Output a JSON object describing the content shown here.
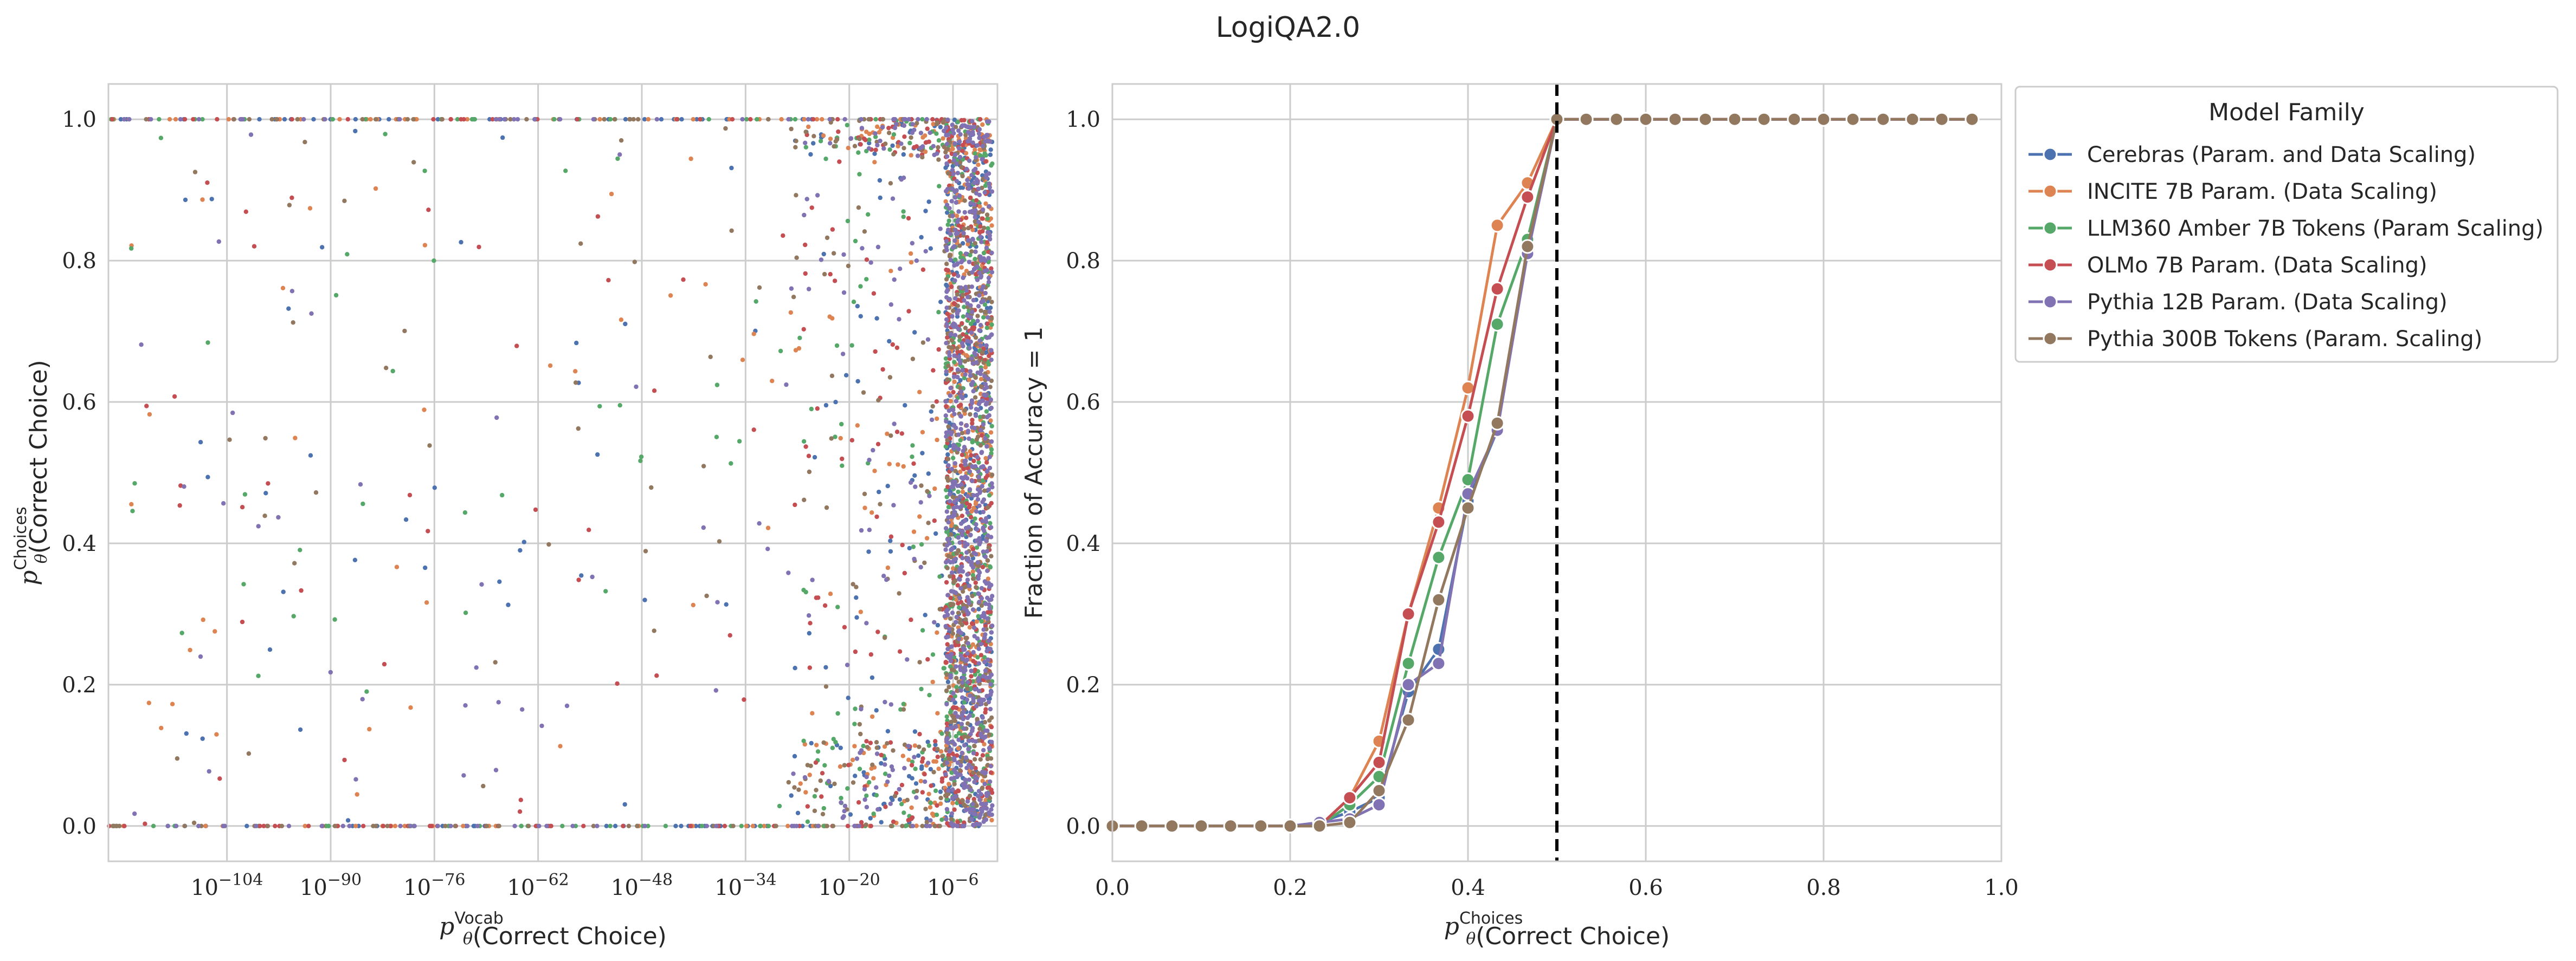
{
  "figure_title": "LogiQA2.0",
  "colors": {
    "Cerebras": "#4c72b0",
    "INCITE": "#dd8452",
    "LLM360": "#55a868",
    "OLMo": "#c44e52",
    "Pythia12B": "#8172b3",
    "Pythia300B": "#937860"
  },
  "chart_data": [
    {
      "type": "scatter",
      "title": "",
      "xlabel": "p_θ^Vocab(Correct Choice)",
      "xlabel_parts": {
        "base": "p",
        "sub": "θ",
        "sup": "Vocab",
        "rest": "(Correct Choice)"
      },
      "ylabel": "p_θ^Choices(Correct Choice)",
      "ylabel_parts": {
        "base": "p",
        "sub": "θ",
        "sup": "Choices",
        "rest": "(Correct Choice)"
      },
      "xscale": "log",
      "xlim_log10": [
        -120,
        0
      ],
      "ylim": [
        -0.05,
        1.05
      ],
      "x_ticks": [
        {
          "exp": -104,
          "base": "10",
          "power": "−104"
        },
        {
          "exp": -90,
          "base": "10",
          "power": "−90"
        },
        {
          "exp": -76,
          "base": "10",
          "power": "−76"
        },
        {
          "exp": -62,
          "base": "10",
          "power": "−62"
        },
        {
          "exp": -48,
          "base": "10",
          "power": "−48"
        },
        {
          "exp": -34,
          "base": "10",
          "power": "−34"
        },
        {
          "exp": -20,
          "base": "10",
          "power": "−20"
        },
        {
          "exp": -6,
          "base": "10",
          "power": "−6"
        }
      ],
      "y_ticks": [
        {
          "v": 0.0,
          "label": "0.0"
        },
        {
          "v": 0.2,
          "label": "0.2"
        },
        {
          "v": 0.4,
          "label": "0.4"
        },
        {
          "v": 0.6,
          "label": "0.6"
        },
        {
          "v": 0.8,
          "label": "0.8"
        },
        {
          "v": 1.0,
          "label": "1.0"
        }
      ],
      "grid": true,
      "series_order": [
        "Cerebras",
        "INCITE",
        "LLM360",
        "OLMo",
        "Pythia300B",
        "Pythia12B"
      ],
      "point_density": {
        "band_start_log10": -6,
        "band_end_log10": 0,
        "main_spread_from_log10": -30
      }
    },
    {
      "type": "line",
      "title": "",
      "xlabel": "p_θ^Choices(Correct Choice)",
      "xlabel_parts": {
        "base": "p",
        "sub": "θ",
        "sup": "Choices",
        "rest": "(Correct Choice)"
      },
      "ylabel": "Fraction of Accuracy = 1",
      "xlim": [
        0.0,
        1.0
      ],
      "ylim": [
        -0.05,
        1.05
      ],
      "x_ticks": [
        {
          "v": 0.0,
          "label": "0.0"
        },
        {
          "v": 0.2,
          "label": "0.2"
        },
        {
          "v": 0.4,
          "label": "0.4"
        },
        {
          "v": 0.6,
          "label": "0.6"
        },
        {
          "v": 0.8,
          "label": "0.8"
        },
        {
          "v": 1.0,
          "label": "1.0"
        }
      ],
      "y_ticks": [
        {
          "v": 0.0,
          "label": "0.0"
        },
        {
          "v": 0.2,
          "label": "0.2"
        },
        {
          "v": 0.4,
          "label": "0.4"
        },
        {
          "v": 0.6,
          "label": "0.6"
        },
        {
          "v": 0.8,
          "label": "0.8"
        },
        {
          "v": 1.0,
          "label": "1.0"
        }
      ],
      "grid": true,
      "vline": {
        "x": 0.5,
        "style": "dashed",
        "color": "#000000"
      },
      "x": [
        0.0,
        0.033,
        0.067,
        0.1,
        0.133,
        0.167,
        0.2,
        0.233,
        0.267,
        0.3,
        0.333,
        0.367,
        0.4,
        0.433,
        0.467,
        0.5,
        0.533,
        0.567,
        0.6,
        0.633,
        0.667,
        0.7,
        0.733,
        0.767,
        0.8,
        0.833,
        0.867,
        0.9,
        0.933,
        0.967
      ],
      "series": [
        {
          "key": "Cerebras",
          "name": "Cerebras (Param. and Data Scaling)",
          "values": [
            0,
            0,
            0,
            0,
            0,
            0,
            0,
            0.005,
            0.02,
            0.04,
            0.19,
            0.25,
            0.46,
            0.56,
            0.82,
            1,
            1,
            1,
            1,
            1,
            1,
            1,
            1,
            1,
            1,
            1,
            1,
            1,
            1,
            1
          ]
        },
        {
          "key": "INCITE",
          "name": "INCITE 7B Param. (Data Scaling)",
          "values": [
            0,
            0,
            0,
            0,
            0,
            0,
            0,
            0,
            0.04,
            0.12,
            0.3,
            0.45,
            0.62,
            0.85,
            0.91,
            1,
            1,
            1,
            1,
            1,
            1,
            1,
            1,
            1,
            1,
            1,
            1,
            1,
            1,
            1
          ]
        },
        {
          "key": "LLM360",
          "name": "LLM360 Amber 7B Tokens (Param Scaling)",
          "values": [
            0,
            0,
            0,
            0,
            0,
            0,
            0,
            0,
            0.03,
            0.07,
            0.23,
            0.38,
            0.49,
            0.71,
            0.83,
            1,
            1,
            1,
            1,
            1,
            1,
            1,
            1,
            1,
            1,
            1,
            1,
            1,
            1,
            1
          ]
        },
        {
          "key": "OLMo",
          "name": "OLMo 7B Param. (Data Scaling)",
          "values": [
            0,
            0,
            0,
            0,
            0,
            0,
            0,
            0,
            0.04,
            0.09,
            0.3,
            0.43,
            0.58,
            0.76,
            0.89,
            1,
            1,
            1,
            1,
            1,
            1,
            1,
            1,
            1,
            1,
            1,
            1,
            1,
            1,
            1
          ]
        },
        {
          "key": "Pythia12B",
          "name": "Pythia 12B Param. (Data Scaling)",
          "values": [
            0,
            0,
            0,
            0,
            0,
            0,
            0,
            0.005,
            0.01,
            0.03,
            0.2,
            0.23,
            0.47,
            0.56,
            0.81,
            1,
            1,
            1,
            1,
            1,
            1,
            1,
            1,
            1,
            1,
            1,
            1,
            1,
            1,
            1
          ]
        },
        {
          "key": "Pythia300B",
          "name": "Pythia 300B Tokens (Param. Scaling)",
          "values": [
            0,
            0,
            0,
            0,
            0,
            0,
            0,
            0,
            0.005,
            0.05,
            0.15,
            0.32,
            0.45,
            0.57,
            0.82,
            1,
            1,
            1,
            1,
            1,
            1,
            1,
            1,
            1,
            1,
            1,
            1,
            1,
            1,
            1
          ]
        }
      ],
      "legend": {
        "title": "Model Family",
        "placement": "outside upper right",
        "entries": [
          {
            "key": "Cerebras",
            "label": "Cerebras (Param. and Data Scaling)"
          },
          {
            "key": "INCITE",
            "label": "INCITE 7B Param. (Data Scaling)"
          },
          {
            "key": "LLM360",
            "label": "LLM360 Amber 7B Tokens (Param Scaling)"
          },
          {
            "key": "OLMo",
            "label": "OLMo 7B Param. (Data Scaling)"
          },
          {
            "key": "Pythia12B",
            "label": "Pythia 12B Param. (Data Scaling)"
          },
          {
            "key": "Pythia300B",
            "label": "Pythia 300B Tokens (Param. Scaling)"
          }
        ]
      }
    }
  ]
}
